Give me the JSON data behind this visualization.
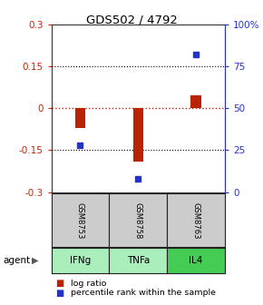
{
  "title": "GDS502 / 4792",
  "samples": [
    "GSM8753",
    "GSM8758",
    "GSM8763"
  ],
  "agents": [
    "IFNg",
    "TNFa",
    "IL4"
  ],
  "log_ratios": [
    -0.07,
    -0.19,
    0.045
  ],
  "percentile_ranks": [
    28,
    8,
    82
  ],
  "ylim_left": [
    -0.3,
    0.3
  ],
  "ylim_right": [
    0,
    100
  ],
  "yticks_left": [
    -0.3,
    -0.15,
    0,
    0.15,
    0.3
  ],
  "yticks_right": [
    0,
    25,
    50,
    75,
    100
  ],
  "ytick_right_labels": [
    "0",
    "25",
    "50",
    "75",
    "100%"
  ],
  "hlines_black": [
    -0.15,
    0.15
  ],
  "hline_red": 0,
  "bar_color": "#bb2200",
  "dot_color": "#2233cc",
  "agent_colors": [
    "#aaeebb",
    "#aaeebb",
    "#44cc55"
  ],
  "sample_bg_color": "#cccccc",
  "table_border_color": "#222222",
  "left_axis_color": "#cc2200",
  "right_axis_color": "#2233cc",
  "legend_log_ratio_label": "log ratio",
  "legend_percentile_label": "percentile rank within the sample",
  "agent_label": "agent",
  "bar_width": 0.18
}
